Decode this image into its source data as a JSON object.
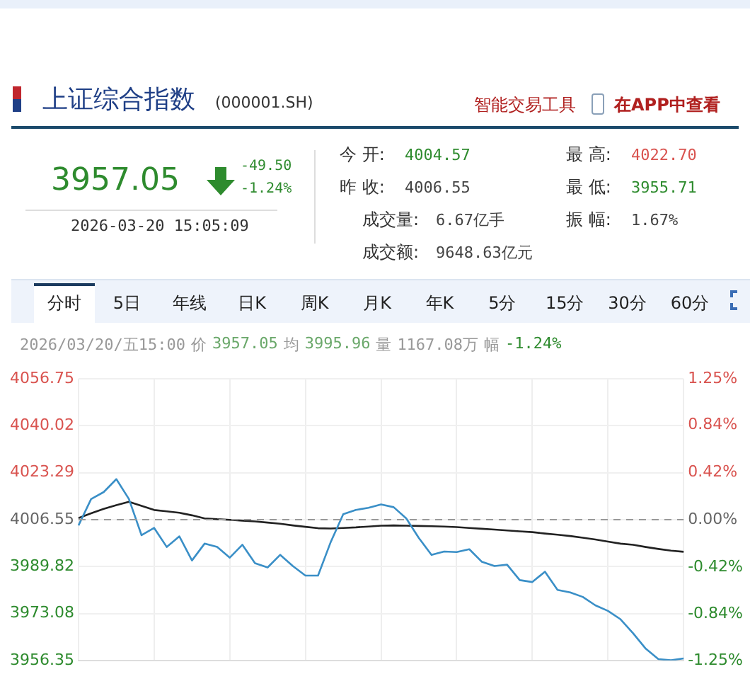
{
  "chart_data": {
    "type": "line",
    "title": "上证综合指数",
    "subtitle": "(000001.SH)",
    "annotations": [
      "智能交易工具",
      "在APP中查看",
      "3957.05",
      "-49.50",
      "-1.24%",
      "2026-03-20 15:05:09",
      "今 开:",
      "4004.57",
      "昨 收:",
      "4006.55",
      "成交量:",
      "6.67亿手",
      "成交额:",
      "9648.63亿元",
      "最 高:",
      "4022.70",
      "最 低:",
      "3955.71",
      "振 幅:",
      "1.67%",
      "分时",
      "5日",
      "年线",
      "日K",
      "周K",
      "月K",
      "年K",
      "5分",
      "15分",
      "30分",
      "60分",
      "2026/03/20/五15:00",
      "价",
      "3957.05",
      "均",
      "3995.96",
      "量",
      "1167.08万",
      "幅",
      "-1.24%"
    ],
    "categories": [
      null,
      null,
      null,
      null,
      null,
      null,
      null,
      null,
      null,
      null,
      null,
      null,
      null,
      null,
      null,
      null,
      null,
      null,
      null,
      null,
      null,
      null,
      null,
      null,
      null,
      null,
      null,
      null,
      null,
      null,
      null,
      null,
      null,
      null,
      null,
      null,
      null,
      null,
      null,
      null,
      null,
      null,
      null,
      null,
      null,
      null,
      null,
      null,
      null
    ],
    "series": [
      {
        "color": "#3a8fc7",
        "values": [
          4004.5,
          4013.9,
          4016.4,
          4021.0,
          4013.9,
          4001.0,
          4003.6,
          3996.8,
          4000.6,
          3992.0,
          3998.0,
          3996.8,
          3993.0,
          3997.6,
          3991.0,
          3989.5,
          3994.0,
          3990.0,
          3986.6,
          3986.6,
          3998.5,
          4008.5,
          4010.0,
          4010.8,
          4012.0,
          4011.0,
          4007.0,
          4000.0,
          3994.0,
          3995.2,
          3995.0,
          3996.0,
          3991.5,
          3990.0,
          3990.5,
          3985.0,
          3984.3,
          3988.0,
          3981.5,
          3980.6,
          3979.0,
          3976.0,
          3974.0,
          3971.0,
          3966.0,
          3960.5,
          3956.8,
          3956.4,
          3957.05
        ]
      },
      {
        "color": "#222222",
        "values": [
          4007.1,
          4008.8,
          4010.4,
          4011.7,
          4012.9,
          4011.5,
          4010.0,
          4009.5,
          4009.0,
          4008.1,
          4007.0,
          4006.7,
          4006.5,
          4006.2,
          4005.9,
          4005.5,
          4005.1,
          4004.5,
          4004.0,
          4003.5,
          4003.4,
          4003.6,
          4003.8,
          4004.1,
          4004.4,
          4004.5,
          4004.4,
          4004.3,
          4004.2,
          4004.1,
          4003.9,
          4003.6,
          4003.3,
          4003.0,
          4002.7,
          4002.4,
          4002.1,
          4001.6,
          4001.2,
          4000.7,
          4000.1,
          3999.5,
          3998.7,
          3998.0,
          3997.6,
          3996.8,
          3996.1,
          3995.5,
          3995.1
        ]
      }
    ],
    "ylim": [
      3956.35,
      4056.75
    ],
    "yticks": [
      3956.35,
      3973.08,
      3989.82,
      4006.55,
      4023.29,
      4040.02,
      4056.75
    ],
    "y2lim": [
      -1.25,
      1.25
    ],
    "y2ticks": [
      {
        "value": -1.25,
        "label": "-1.25%"
      },
      {
        "value": -0.84,
        "label": "-0.84%"
      },
      {
        "value": -0.42,
        "label": "-0.42%"
      },
      {
        "value": 0,
        "label": "0.00%"
      },
      {
        "value": 0.42,
        "label": "0.42%"
      },
      {
        "value": 0.84,
        "label": "0.84%"
      },
      {
        "value": 1.25,
        "label": "1.25%"
      }
    ],
    "ref_lines": [
      {
        "axis": "y",
        "value": 4006.55,
        "color": "#999999",
        "line_style": "dashed"
      }
    ],
    "grid": true,
    "legend": false,
    "marker": "none",
    "line_style": "solid"
  }
}
